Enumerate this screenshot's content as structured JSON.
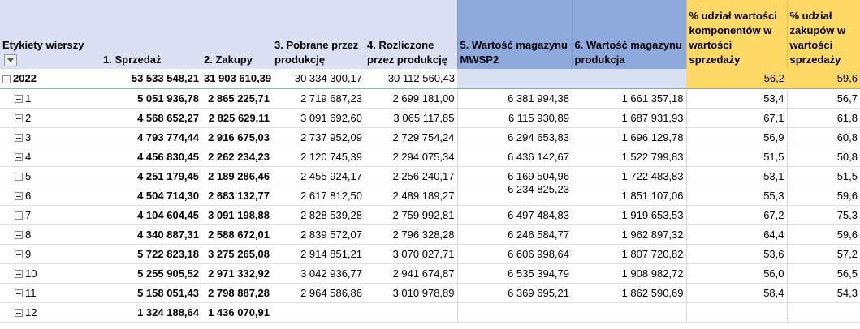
{
  "headers": {
    "row_labels": "Etykiety wierszy",
    "sales": "1. Sprzedaż",
    "purchases": "2. Zakupy",
    "taken_production": "3. Pobrane przez produkcję",
    "settled_production": "4. Rozliczone przez produkcję",
    "warehouse_mwsp2": "5. Wartość magazynu MWSP2",
    "warehouse_production": "6. Wartość magazynu produkcja",
    "pct_components": "% udział wartości komponentów w wartości sprzedaży",
    "pct_purchases": "% udział zakupów w wartości sprzedaży"
  },
  "year_row": {
    "label": "2022",
    "sales": "53 533 548,21",
    "purchases": "31 903 610,39",
    "taken_production": "30 334 300,17",
    "settled_production": "30 112 560,43",
    "warehouse_mwsp2": "",
    "warehouse_production": "",
    "pct_components": "56,2",
    "pct_purchases": "59,6"
  },
  "rows": [
    {
      "label": "1",
      "sales": "5 051 936,78",
      "purchases": "2 865 225,71",
      "taken": "2 719 687,23",
      "settled": "2 699 181,00",
      "mwsp2": "6 381 994,38",
      "prod": "1 661 357,18",
      "pct_comp": "53,4",
      "pct_purch": "56,7"
    },
    {
      "label": "2",
      "sales": "4 568 652,27",
      "purchases": "2 825 629,11",
      "taken": "3 091 692,60",
      "settled": "3 065 117,85",
      "mwsp2": "6 115 930,89",
      "prod": "1 687 931,93",
      "pct_comp": "67,1",
      "pct_purch": "61,8"
    },
    {
      "label": "3",
      "sales": "4 793 774,44",
      "purchases": "2 916 675,03",
      "taken": "2 737 952,09",
      "settled": "2 729 754,24",
      "mwsp2": "6 294 653,83",
      "prod": "1 696 129,78",
      "pct_comp": "56,9",
      "pct_purch": "60,8"
    },
    {
      "label": "4",
      "sales": "4 456 830,45",
      "purchases": "2 262 234,23",
      "taken": "2 120 745,39",
      "settled": "2 294 075,34",
      "mwsp2": "6 436 142,67",
      "prod": "1 522 799,83",
      "pct_comp": "51,5",
      "pct_purch": "50,8"
    },
    {
      "label": "5",
      "sales": "4 251 179,45",
      "purchases": "2 189 286,46",
      "taken": "2 455 924,17",
      "settled": "2 256 240,17",
      "mwsp2": "6 169 504,96",
      "prod": "1 722 483,83",
      "pct_comp": "53,1",
      "pct_purch": "51,5"
    },
    {
      "label": "6",
      "sales": "4 504 714,30",
      "purchases": "2 683 132,77",
      "taken": "2 617 812,50",
      "settled": "2 489 189,27",
      "mwsp2": "6 234 825,23",
      "prod": "1 851 107,06",
      "pct_comp": "55,3",
      "pct_purch": "59,6"
    },
    {
      "label": "7",
      "sales": "4 104 604,45",
      "purchases": "3 091 198,88",
      "taken": "2 828 539,28",
      "settled": "2 759 992,81",
      "mwsp2": "6 497 484,83",
      "prod": "1 919 653,53",
      "pct_comp": "67,2",
      "pct_purch": "75,3"
    },
    {
      "label": "8",
      "sales": "4 340 887,31",
      "purchases": "2 588 672,01",
      "taken": "2 839 572,07",
      "settled": "2 796 328,28",
      "mwsp2": "6 246 584,77",
      "prod": "1 962 897,32",
      "pct_comp": "64,4",
      "pct_purch": "59,6"
    },
    {
      "label": "9",
      "sales": "5 722 823,18",
      "purchases": "3 275 265,08",
      "taken": "2 914 851,21",
      "settled": "3 070 027,71",
      "mwsp2": "6 606 998,64",
      "prod": "1 807 720,82",
      "pct_comp": "53,6",
      "pct_purch": "57,2"
    },
    {
      "label": "10",
      "sales": "5 255 905,52",
      "purchases": "2 971 332,92",
      "taken": "3 042 936,77",
      "settled": "2 941 674,87",
      "mwsp2": "6 535 394,79",
      "prod": "1 908 982,72",
      "pct_comp": "56,0",
      "pct_purch": "56,5"
    },
    {
      "label": "11",
      "sales": "5 158 051,43",
      "purchases": "2 798 887,28",
      "taken": "2 964 586,86",
      "settled": "3 010 978,89",
      "mwsp2": "6 369 695,21",
      "prod": "1 862 590,69",
      "pct_comp": "58,4",
      "pct_purch": "54,3"
    },
    {
      "label": "12",
      "sales": "1 324 188,64",
      "purchases": "1 436 070,91",
      "taken": "",
      "settled": "",
      "mwsp2": "",
      "prod": "",
      "pct_comp": "",
      "pct_purch": ""
    }
  ]
}
